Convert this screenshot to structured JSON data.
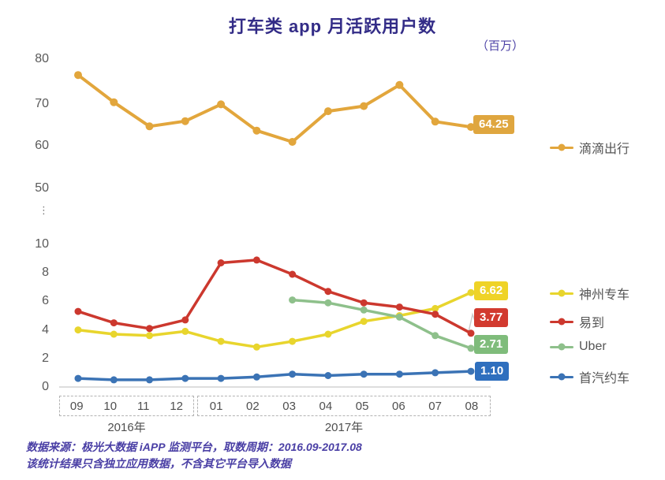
{
  "title": "打车类 app 月活跃用户数",
  "unit": "（百万）",
  "axis": {
    "y_upper": [
      "80",
      "70",
      "60",
      "50"
    ],
    "y_break": "⋮",
    "y_lower": [
      "10",
      "8",
      "6",
      "4",
      "2",
      "0"
    ],
    "months_2016": [
      "09",
      "10",
      "11",
      "12"
    ],
    "months_2017": [
      "01",
      "02",
      "03",
      "04",
      "05",
      "06",
      "07",
      "08"
    ],
    "year_2016": "2016年",
    "year_2017": "2017年"
  },
  "source": {
    "line1": "数据来源：极光大数据 iAPP 监测平台，取数周期：2016.09-2017.08",
    "line2": "该统计结果只含独立应用数据，不含其它平台导入数据"
  },
  "chart_data": {
    "type": "line",
    "title": "打车类 app 月活跃用户数",
    "unit": "百万",
    "categories": [
      "2016-09",
      "2016-10",
      "2016-11",
      "2016-12",
      "2017-01",
      "2017-02",
      "2017-03",
      "2017-04",
      "2017-05",
      "2017-06",
      "2017-07",
      "2017-08"
    ],
    "y_axis": {
      "lower_range": [
        0,
        10
      ],
      "upper_range": [
        50,
        80
      ],
      "broken": true,
      "grid": false
    },
    "legend_position": "right",
    "series": [
      {
        "name": "滴滴出行",
        "color": "#E2A63C",
        "badge_color": "#DFA63F",
        "end_label": "64.25",
        "values": [
          76.3,
          70.0,
          64.4,
          65.6,
          69.5,
          63.4,
          60.8,
          67.9,
          69.1,
          74.0,
          65.5,
          64.25
        ]
      },
      {
        "name": "神州专车",
        "color": "#E8D52D",
        "badge_color": "#EFD327",
        "end_label": "6.62",
        "values": [
          4.0,
          3.7,
          3.6,
          3.9,
          3.2,
          2.8,
          3.2,
          3.7,
          4.6,
          5.0,
          5.5,
          6.62
        ]
      },
      {
        "name": "易到",
        "color": "#CC382E",
        "badge_color": "#D23A2F",
        "end_label": "3.77",
        "values": [
          5.3,
          4.5,
          4.1,
          4.7,
          8.7,
          8.9,
          7.9,
          6.7,
          5.9,
          5.6,
          5.1,
          3.77
        ]
      },
      {
        "name": "Uber",
        "color": "#8EC08B",
        "badge_color": "#7FBC7B",
        "end_label": "2.71",
        "values": [
          null,
          null,
          null,
          null,
          null,
          null,
          6.1,
          5.9,
          5.4,
          4.9,
          3.6,
          2.71
        ]
      },
      {
        "name": "首汽约车",
        "color": "#3B73B5",
        "badge_color": "#2E6FBE",
        "end_label": "1.10",
        "values": [
          0.6,
          0.5,
          0.5,
          0.6,
          0.6,
          0.7,
          0.9,
          0.8,
          0.9,
          0.9,
          1.0,
          1.1
        ]
      }
    ]
  }
}
